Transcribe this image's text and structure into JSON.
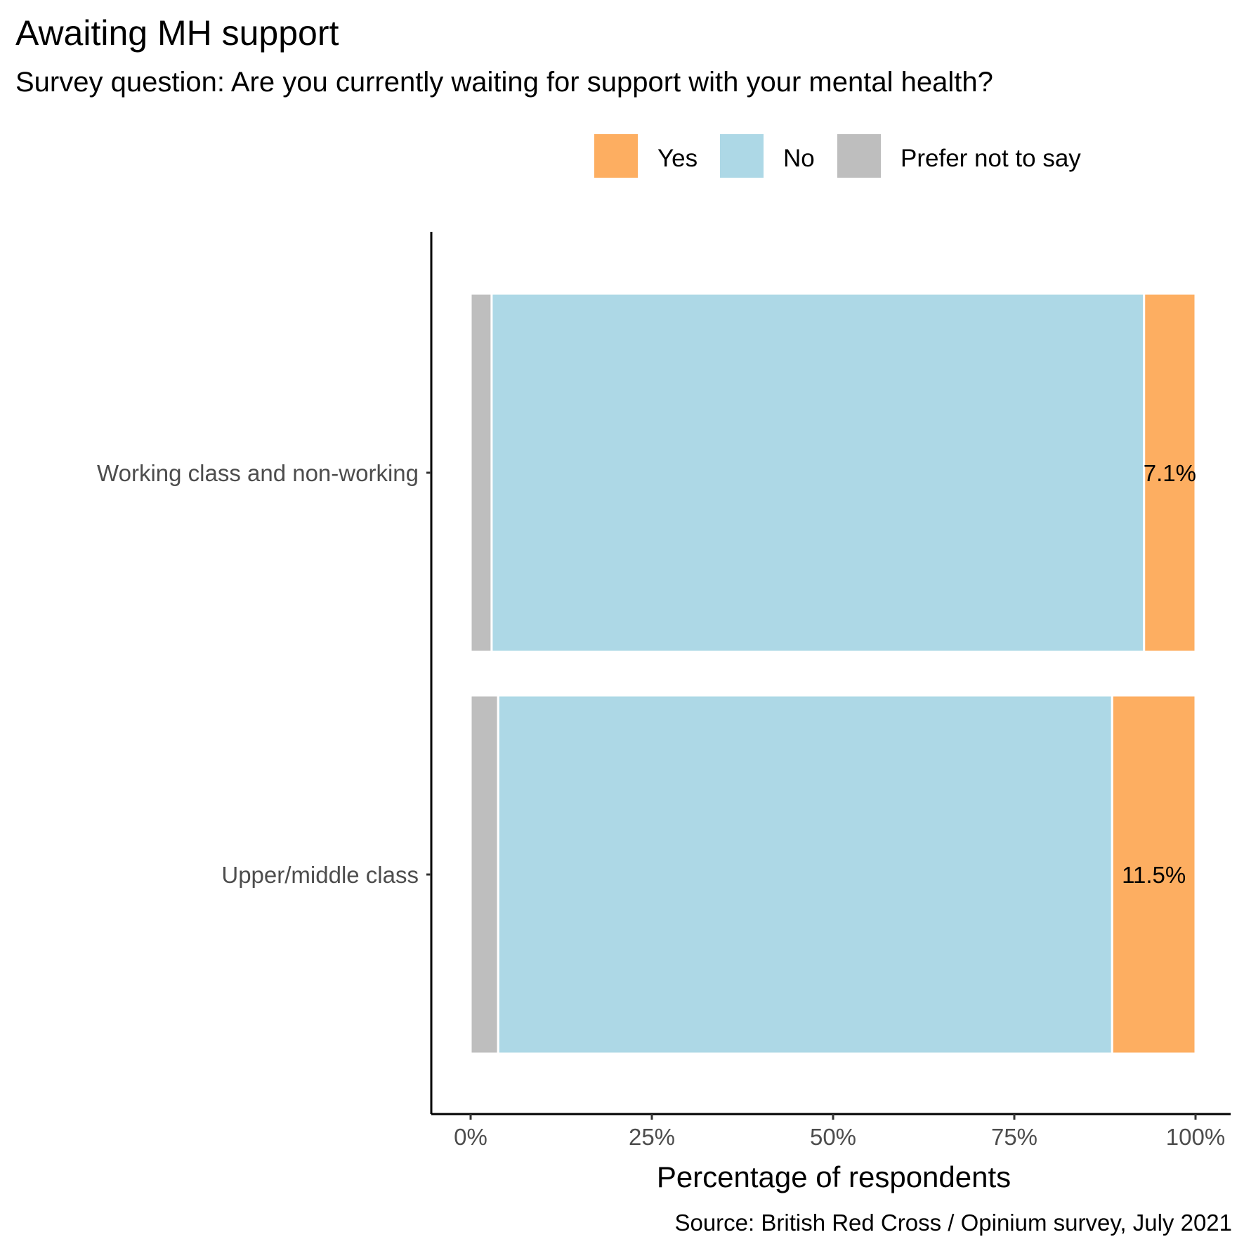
{
  "chart_data": {
    "type": "bar",
    "orientation": "horizontal",
    "stacked": true,
    "title": "Awaiting MH support",
    "subtitle": "Survey question: Are you currently waiting for support with your mental health?",
    "xlabel": "Percentage of respondents",
    "ylabel": "",
    "xlim": [
      0,
      100
    ],
    "x_tick_labels": [
      "0%",
      "25%",
      "50%",
      "75%",
      "100%"
    ],
    "x_tick_values": [
      0,
      25,
      50,
      75,
      100
    ],
    "categories": [
      "Working class and non-working",
      "Upper/middle class"
    ],
    "series": [
      {
        "name": "Prefer not to say",
        "color": "#bebebe",
        "values": [
          2.9,
          3.8
        ]
      },
      {
        "name": "No",
        "color": "#add8e6",
        "values": [
          90.0,
          84.7
        ]
      },
      {
        "name": "Yes",
        "color": "#fdae61",
        "values": [
          7.1,
          11.5
        ]
      }
    ],
    "legend_order": [
      "Yes",
      "No",
      "Prefer not to say"
    ],
    "legend_position": "top-right",
    "data_labels": [
      "7.1%",
      "11.5%"
    ],
    "grid": false,
    "caption": "Source: British Red Cross / Opinium survey, July 2021"
  }
}
